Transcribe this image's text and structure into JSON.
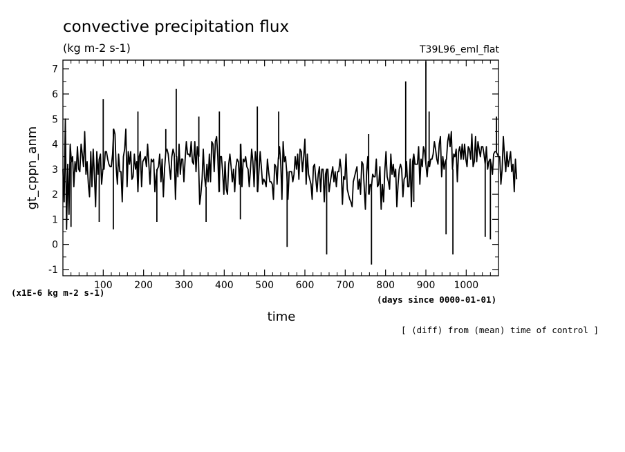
{
  "chart_data": {
    "type": "line",
    "title": "convective precipitation flux",
    "units": "(kg m-2 s-1)",
    "run_label": "T39L96_eml_flat",
    "ylabel": "gt_cppn_anm",
    "xlabel": "time",
    "y_scale_note": "(x1E-6 kg m-2 s-1)",
    "x_unit_note": "(days since 0000-01-01)",
    "footnote": "[ (diff) from (mean) time of control ]",
    "xlim": [
      0,
      1080
    ],
    "ylim": [
      -1.25,
      7.35
    ],
    "x_ticks": [
      100,
      200,
      300,
      400,
      500,
      600,
      700,
      800,
      900,
      1000
    ],
    "x_tick_labels": [
      "100",
      "200",
      "300",
      "400",
      "500",
      "600",
      "700",
      "800",
      "900",
      "1000"
    ],
    "y_ticks": [
      -1,
      0,
      1,
      2,
      3,
      4,
      5,
      6,
      7
    ],
    "y_tick_labels": [
      "-1",
      "0",
      "1",
      "2",
      "3",
      "4",
      "5",
      "6",
      "7"
    ],
    "series": [
      {
        "x_start": 0,
        "x_step": 3,
        "values": [
          3.0,
          1.7,
          5.0,
          0.6,
          3.2,
          1.2,
          4.0,
          3.3,
          3.5,
          2.3,
          3.3,
          2.9,
          3.9,
          3.0,
          2.9,
          4.0,
          3.6,
          3.1,
          4.5,
          2.8,
          3.3,
          2.4,
          1.9,
          3.7,
          2.3,
          3.8,
          2.8,
          1.5,
          3.7,
          2.8,
          3.4,
          3.6,
          2.4,
          3.0,
          3.0,
          3.7,
          3.7,
          3.4,
          3.2,
          3.1,
          3.1,
          3.6,
          4.6,
          4.4,
          3.1,
          2.4,
          3.6,
          2.9,
          2.9,
          1.7,
          3.5,
          3.8,
          4.6,
          2.3,
          3.7,
          3.2,
          3.7,
          2.6,
          2.7,
          3.6,
          3.0,
          3.3,
          2.1,
          3.5,
          3.7,
          2.3,
          3.3,
          3.4,
          3.5,
          3.1,
          4.0,
          3.2,
          2.4,
          3.4,
          3.3,
          3.4,
          2.1,
          2.7,
          3.0,
          3.1,
          3.6,
          2.5,
          3.4,
          1.9,
          3.0,
          3.7,
          3.8,
          3.6,
          3.1,
          2.6,
          3.5,
          3.8,
          3.6,
          1.8,
          3.5,
          2.7,
          4.0,
          2.8,
          3.4,
          3.4,
          2.5,
          3.4,
          4.1,
          3.6,
          3.6,
          3.5,
          4.1,
          3.3,
          3.2,
          4.1,
          2.9,
          3.9,
          3.5,
          1.6,
          2.0,
          2.6,
          3.8,
          2.7,
          2.3,
          3.2,
          2.5,
          3.6,
          2.5,
          4.1,
          4.0,
          2.9,
          4.1,
          4.3,
          3.5,
          2.1,
          3.5,
          3.5,
          2.9,
          2.0,
          3.3,
          2.2,
          2.0,
          3.2,
          3.6,
          3.1,
          2.5,
          3.0,
          2.1,
          3.1,
          3.4,
          3.3,
          2.4,
          4.0,
          2.3,
          3.4,
          3.3,
          3.5,
          3.1,
          3.0,
          2.3,
          3.0,
          3.8,
          3.3,
          2.3,
          3.7,
          3.3,
          2.1,
          2.9,
          3.7,
          3.1,
          2.4,
          2.6,
          2.5,
          2.3,
          3.4,
          2.9,
          2.5,
          2.5,
          2.4,
          1.8,
          3.2,
          3.1,
          2.4,
          3.4,
          3.9,
          3.3,
          1.8,
          4.1,
          3.3,
          3.5,
          2.9,
          1.8,
          2.9,
          2.9,
          2.9,
          2.5,
          2.8,
          3.5,
          3.0,
          3.6,
          2.6,
          3.8,
          3.7,
          2.9,
          3.5,
          4.2,
          2.4,
          3.6,
          2.8,
          2.6,
          2.4,
          1.8,
          3.1,
          3.2,
          2.6,
          2.1,
          2.8,
          3.1,
          2.1,
          3.0,
          3.0,
          1.7,
          2.8,
          3.0,
          3.0,
          2.1,
          2.5,
          2.8,
          3.1,
          2.5,
          2.9,
          2.3,
          2.9,
          2.9,
          3.4,
          3.0,
          1.6,
          2.7,
          2.6,
          3.6,
          2.2,
          2.0,
          1.8,
          1.7,
          1.5,
          2.5,
          2.7,
          2.9,
          3.1,
          2.2,
          2.6,
          2.0,
          3.3,
          3.2,
          2.3,
          1.4,
          2.9,
          3.5,
          2.0,
          2.4,
          2.3,
          2.8,
          2.7,
          2.7,
          3.4,
          2.3,
          2.4,
          3.1,
          1.4,
          2.4,
          1.7,
          2.9,
          3.7,
          2.7,
          2.5,
          2.2,
          3.6,
          2.8,
          3.2,
          2.7,
          3.0,
          1.5,
          2.4,
          3.0,
          3.2,
          3.0,
          1.9,
          2.6,
          2.7,
          3.3,
          2.3,
          2.3,
          3.4,
          1.5,
          3.3,
          3.6,
          3.2,
          3.2,
          3.2,
          3.9,
          2.4,
          3.4,
          3.1,
          3.9,
          3.7,
          3.2,
          2.7,
          3.3,
          3.1,
          3.4,
          3.4,
          3.6,
          4.1,
          3.8,
          3.4,
          3.2,
          4.0,
          4.3,
          2.7,
          3.5,
          3.0,
          3.3,
          3.4,
          4.1,
          4.4,
          3.9,
          4.5,
          3.0,
          3.6,
          3.5,
          3.8,
          2.5,
          3.7,
          3.9,
          3.4,
          4.0,
          3.4,
          4.0,
          3.4,
          3.1,
          3.9,
          3.8,
          3.4,
          4.4,
          3.1,
          3.3,
          4.3,
          3.3,
          4.1,
          3.8,
          3.5,
          3.9,
          3.9,
          3.6,
          3.2,
          3.9,
          3.0,
          3.3,
          3.4,
          3.2,
          2.8,
          3.6,
          3.7,
          3.7,
          3.6,
          3.5,
          3.5,
          2.4,
          3.0,
          4.3,
          3.5,
          2.9,
          3.7,
          3.1,
          3.4,
          3.7,
          2.9,
          3.2,
          2.1,
          3.4,
          2.6
        ]
      }
    ],
    "spikes": [
      {
        "x": 100,
        "y": 5.8
      },
      {
        "x": 186,
        "y": 5.3
      },
      {
        "x": 255,
        "y": 4.6
      },
      {
        "x": 281,
        "y": 6.2
      },
      {
        "x": 337,
        "y": 5.1
      },
      {
        "x": 388,
        "y": 5.3
      },
      {
        "x": 482,
        "y": 5.5
      },
      {
        "x": 535,
        "y": 5.3
      },
      {
        "x": 758,
        "y": 4.4
      },
      {
        "x": 850,
        "y": 6.5
      },
      {
        "x": 900,
        "y": 7.3
      },
      {
        "x": 908,
        "y": 5.3
      },
      {
        "x": 1075,
        "y": 5.1
      },
      {
        "x": 20,
        "y": 0.7
      },
      {
        "x": 90,
        "y": 0.9
      },
      {
        "x": 125,
        "y": 0.6
      },
      {
        "x": 233,
        "y": 0.9
      },
      {
        "x": 355,
        "y": 0.9
      },
      {
        "x": 440,
        "y": 1.0
      },
      {
        "x": 556,
        "y": -0.1
      },
      {
        "x": 654,
        "y": -0.4
      },
      {
        "x": 765,
        "y": -0.8
      },
      {
        "x": 870,
        "y": 1.7
      },
      {
        "x": 950,
        "y": 0.4
      },
      {
        "x": 967,
        "y": -0.4
      },
      {
        "x": 1047,
        "y": 0.3
      },
      {
        "x": 1060,
        "y": 0.2
      }
    ],
    "line_color": "#000000",
    "grid": false
  }
}
